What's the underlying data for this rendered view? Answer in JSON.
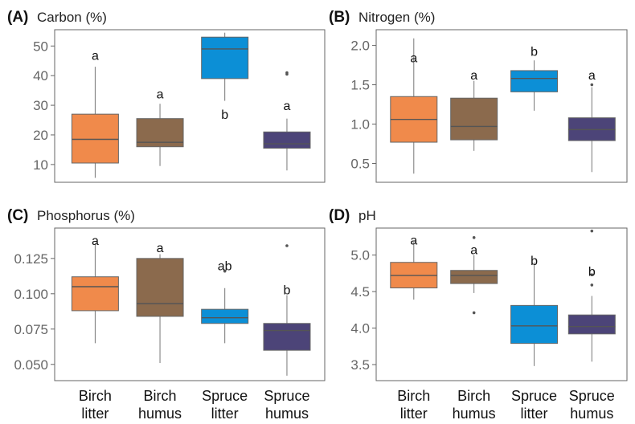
{
  "colors": {
    "Birch litter": "#f08a4b",
    "Birch humus": "#8b6a4d",
    "Spruce litter": "#0c8fd6",
    "Spruce humus": "#4c4478",
    "frame": "#666666",
    "median": "#555555"
  },
  "chart_data": [
    {
      "type": "box",
      "letter": "(A)",
      "title": "Carbon (%)",
      "yticks": [
        10,
        20,
        30,
        40,
        50
      ],
      "ylim": [
        4,
        55.5
      ],
      "categories": [
        "Birch litter",
        "Birch humus",
        "Spruce litter",
        "Spruce humus"
      ],
      "boxes": [
        {
          "min": 5.5,
          "q1": 10.5,
          "median": 18.5,
          "q3": 27,
          "max": 43,
          "outliers": [],
          "letter": "a",
          "letter_y": 47
        },
        {
          "min": 9.5,
          "q1": 16,
          "median": 17.5,
          "q3": 25.5,
          "max": 30.5,
          "outliers": [],
          "letter": "a",
          "letter_y": 34
        },
        {
          "min": 31.5,
          "q1": 39,
          "median": 49,
          "q3": 53,
          "max": 54.5,
          "outliers": [],
          "letter": "b",
          "letter_y": 27
        },
        {
          "min": 8,
          "q1": 15.5,
          "median": 17,
          "q3": 21,
          "max": 25.5,
          "outliers": [
            40.5,
            41
          ],
          "letter": "a",
          "letter_y": 30
        }
      ]
    },
    {
      "type": "box",
      "letter": "(B)",
      "title": "Nitrogen (%)",
      "yticks": [
        0.5,
        1.0,
        1.5,
        2.0
      ],
      "ylim": [
        0.26,
        2.2
      ],
      "categories": [
        "Birch litter",
        "Birch humus",
        "Spruce litter",
        "Spruce humus"
      ],
      "boxes": [
        {
          "min": 0.37,
          "q1": 0.77,
          "median": 1.06,
          "q3": 1.35,
          "max": 2.09,
          "outliers": [],
          "letter": "a",
          "letter_y": 1.85
        },
        {
          "min": 0.66,
          "q1": 0.8,
          "median": 0.97,
          "q3": 1.33,
          "max": 1.55,
          "outliers": [],
          "letter": "a",
          "letter_y": 1.63
        },
        {
          "min": 1.17,
          "q1": 1.41,
          "median": 1.58,
          "q3": 1.68,
          "max": 1.81,
          "outliers": [],
          "letter": "b",
          "letter_y": 1.93
        },
        {
          "min": 0.39,
          "q1": 0.79,
          "median": 0.93,
          "q3": 1.08,
          "max": 1.47,
          "outliers": [
            1.5
          ],
          "letter": "a",
          "letter_y": 1.63
        }
      ]
    },
    {
      "type": "box",
      "letter": "(C)",
      "title": "Phosphorus (%)",
      "yticks": [
        0.05,
        0.075,
        0.1,
        0.125
      ],
      "ylim": [
        0.0385,
        0.1465
      ],
      "categories": [
        "Birch litter",
        "Birch humus",
        "Spruce litter",
        "Spruce humus"
      ],
      "boxes": [
        {
          "min": 0.065,
          "q1": 0.088,
          "median": 0.105,
          "q3": 0.112,
          "max": 0.136,
          "outliers": [],
          "letter": "a",
          "letter_y": 0.138
        },
        {
          "min": 0.051,
          "q1": 0.084,
          "median": 0.093,
          "q3": 0.125,
          "max": 0.128,
          "outliers": [],
          "letter": "a",
          "letter_y": 0.133
        },
        {
          "min": 0.065,
          "q1": 0.079,
          "median": 0.083,
          "q3": 0.089,
          "max": 0.104,
          "outliers": [
            0.116
          ],
          "letter": "ab",
          "letter_y": 0.12
        },
        {
          "min": 0.042,
          "q1": 0.06,
          "median": 0.074,
          "q3": 0.079,
          "max": 0.099,
          "outliers": [
            0.134
          ],
          "letter": "b",
          "letter_y": 0.103
        }
      ]
    },
    {
      "type": "box",
      "letter": "(D)",
      "title": "pH",
      "yticks": [
        3.5,
        4.0,
        4.5,
        5.0
      ],
      "ylim": [
        3.28,
        5.37
      ],
      "categories": [
        "Birch litter",
        "Birch humus",
        "Spruce litter",
        "Spruce humus"
      ],
      "boxes": [
        {
          "min": 4.39,
          "q1": 4.55,
          "median": 4.72,
          "q3": 4.9,
          "max": 5.18,
          "outliers": [],
          "letter": "a",
          "letter_y": 5.21
        },
        {
          "min": 4.48,
          "q1": 4.61,
          "median": 4.72,
          "q3": 4.79,
          "max": 5.0,
          "outliers": [
            4.21,
            5.24
          ],
          "letter": "a",
          "letter_y": 5.08
        },
        {
          "min": 3.48,
          "q1": 3.79,
          "median": 4.03,
          "q3": 4.31,
          "max": 4.9,
          "outliers": [],
          "letter": "b",
          "letter_y": 4.93
        },
        {
          "min": 3.54,
          "q1": 3.92,
          "median": 4.02,
          "q3": 4.18,
          "max": 4.44,
          "outliers": [
            4.59,
            4.73,
            5.33
          ],
          "letter": "b",
          "letter_y": 4.78
        }
      ]
    }
  ]
}
